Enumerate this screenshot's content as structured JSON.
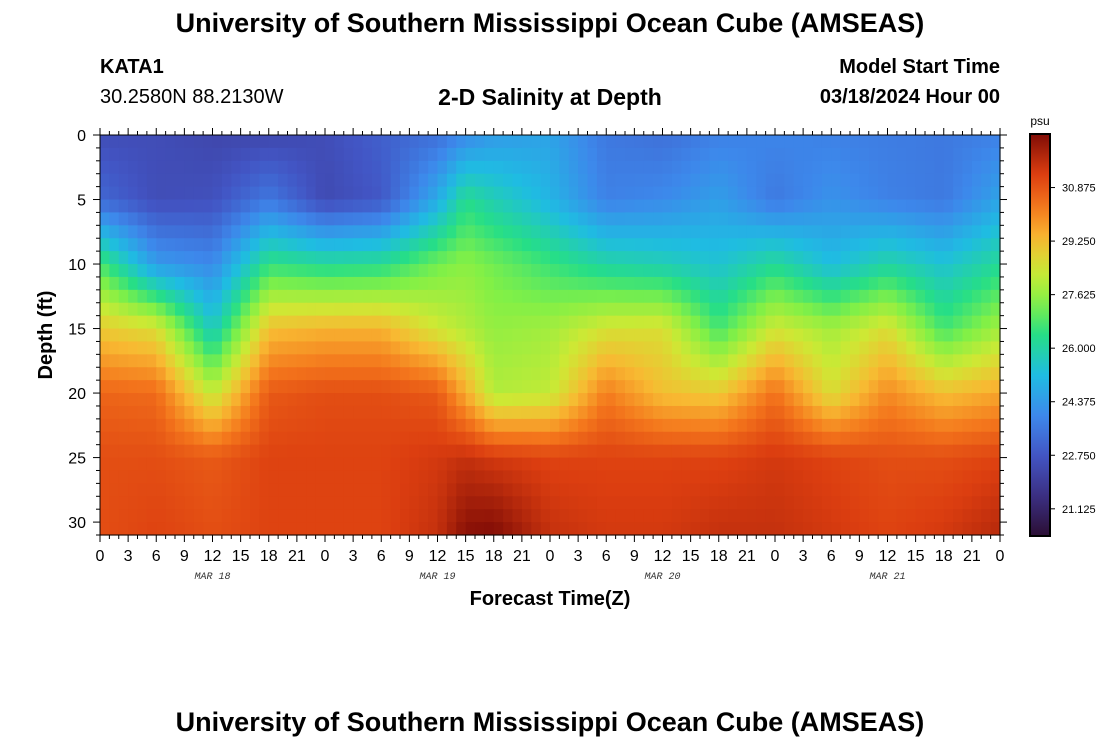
{
  "header": {
    "title": "University of Southern Mississippi Ocean Cube (AMSEAS)",
    "station": "KATA1",
    "coords": "30.2580N  88.2130W",
    "subtitle": "2-D Salinity at Depth",
    "model_start_label": "Model Start Time",
    "model_start_value": "03/18/2024 Hour 00"
  },
  "footer": {
    "title": "University of Southern Mississippi Ocean Cube (AMSEAS)"
  },
  "chart_data": {
    "type": "heatmap",
    "title": "2-D Salinity at Depth",
    "xlabel": "Forecast Time(Z)",
    "ylabel": "Depth (ft)",
    "x_range": [
      0,
      96
    ],
    "y_range": [
      0,
      31
    ],
    "x_tick_labels": [
      "0",
      "3",
      "6",
      "9",
      "12",
      "15",
      "18",
      "21",
      "0",
      "3",
      "6",
      "9",
      "12",
      "15",
      "18",
      "21",
      "0",
      "3",
      "6",
      "9",
      "12",
      "15",
      "18",
      "21",
      "0",
      "3",
      "6",
      "9",
      "12",
      "15",
      "18",
      "21",
      "0"
    ],
    "y_ticks": [
      0,
      5,
      10,
      15,
      20,
      25,
      30
    ],
    "date_labels": [
      {
        "label": "MAR 18",
        "hour": 12
      },
      {
        "label": "MAR 19",
        "hour": 36
      },
      {
        "label": "MAR 20",
        "hour": 60
      },
      {
        "label": "MAR 21",
        "hour": 84
      }
    ],
    "colorbar": {
      "unit": "psu",
      "min": 20.3,
      "max": 32.5,
      "ticks": [
        "21.125",
        "22.750",
        "24.375",
        "26.000",
        "27.625",
        "29.250",
        "30.875"
      ]
    },
    "profile_hours": [
      0,
      6,
      12,
      18,
      24,
      30,
      36,
      39,
      42,
      48,
      54,
      60,
      66,
      72,
      78,
      84,
      90,
      96
    ],
    "profile_depths": [
      0,
      5,
      10,
      15,
      20,
      25,
      31
    ],
    "salinity": [
      [
        22.5,
        22.5,
        22.3,
        22.3,
        22.5,
        23.0,
        23.4,
        24.0,
        24.4,
        24.6,
        23.6,
        23.4,
        23.8,
        23.9,
        23.8,
        23.7,
        23.6,
        23.8
      ],
      [
        23.2,
        22.5,
        22.6,
        23.6,
        22.4,
        22.8,
        24.8,
        26.3,
        25.8,
        25.0,
        23.8,
        24.0,
        24.5,
        23.6,
        24.2,
        23.8,
        23.6,
        24.6
      ],
      [
        26.8,
        24.4,
        24.0,
        26.5,
        26.2,
        26.3,
        27.2,
        27.5,
        27.2,
        26.6,
        26.0,
        25.8,
        25.4,
        26.2,
        25.2,
        26.0,
        25.4,
        26.2
      ],
      [
        29.0,
        28.6,
        25.6,
        29.2,
        29.4,
        29.4,
        28.4,
        28.0,
        27.6,
        27.8,
        28.5,
        28.6,
        26.7,
        28.4,
        27.8,
        28.6,
        26.7,
        27.8
      ],
      [
        30.6,
        30.5,
        28.2,
        30.8,
        31.0,
        31.0,
        30.8,
        29.5,
        28.0,
        28.2,
        30.2,
        29.2,
        29.0,
        30.4,
        28.6,
        30.0,
        29.2,
        29.6
      ],
      [
        31.0,
        31.0,
        30.8,
        31.2,
        31.2,
        31.2,
        31.4,
        31.6,
        31.4,
        31.2,
        31.2,
        31.2,
        31.2,
        31.4,
        31.2,
        31.0,
        31.0,
        31.2
      ],
      [
        31.0,
        31.2,
        31.0,
        31.2,
        31.2,
        31.2,
        31.6,
        32.4,
        32.5,
        31.6,
        31.4,
        31.4,
        31.6,
        31.6,
        31.4,
        31.2,
        31.4,
        31.8
      ]
    ]
  }
}
